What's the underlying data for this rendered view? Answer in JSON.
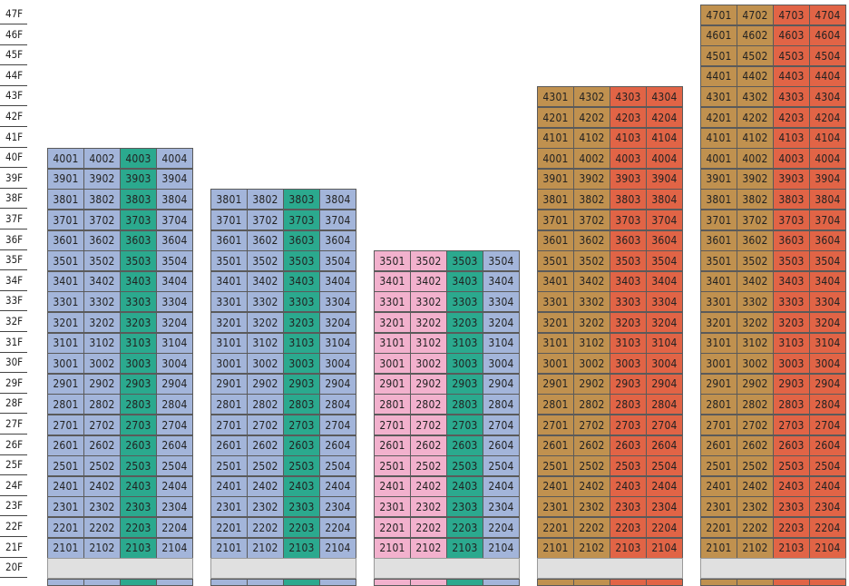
{
  "floors": [
    "47F",
    "46F",
    "45F",
    "44F",
    "43F",
    "42F",
    "41F",
    "40F",
    "39F",
    "38F",
    "37F",
    "36F",
    "35F",
    "34F",
    "33F",
    "32F",
    "31F",
    "30F",
    "29F",
    "28F",
    "27F",
    "26F",
    "25F",
    "24F",
    "23F",
    "22F",
    "21F",
    "20F"
  ],
  "amenity_floor": "20F",
  "colors": {
    "blue": "#a3b5da",
    "teal": "#2ba98e",
    "pink": "#f2b1cd",
    "tan": "#c0914f",
    "orange": "#e16446",
    "amenity": "#e0e0e0"
  },
  "buildings": [
    {
      "name": "building-1",
      "top_floor": 40,
      "bottom_floor": 21,
      "unit_colors": [
        "blue",
        "blue",
        "teal",
        "blue"
      ]
    },
    {
      "name": "building-2",
      "top_floor": 38,
      "bottom_floor": 21,
      "unit_colors": [
        "blue",
        "blue",
        "teal",
        "blue"
      ]
    },
    {
      "name": "building-3",
      "top_floor": 35,
      "bottom_floor": 21,
      "unit_colors": [
        "pink",
        "pink",
        "teal",
        "blue"
      ]
    },
    {
      "name": "building-4",
      "top_floor": 43,
      "bottom_floor": 21,
      "unit_colors": [
        "tan",
        "tan",
        "orange",
        "orange"
      ]
    },
    {
      "name": "building-5",
      "top_floor": 47,
      "bottom_floor": 21,
      "unit_colors": [
        "tan",
        "tan",
        "orange",
        "orange"
      ]
    }
  ]
}
